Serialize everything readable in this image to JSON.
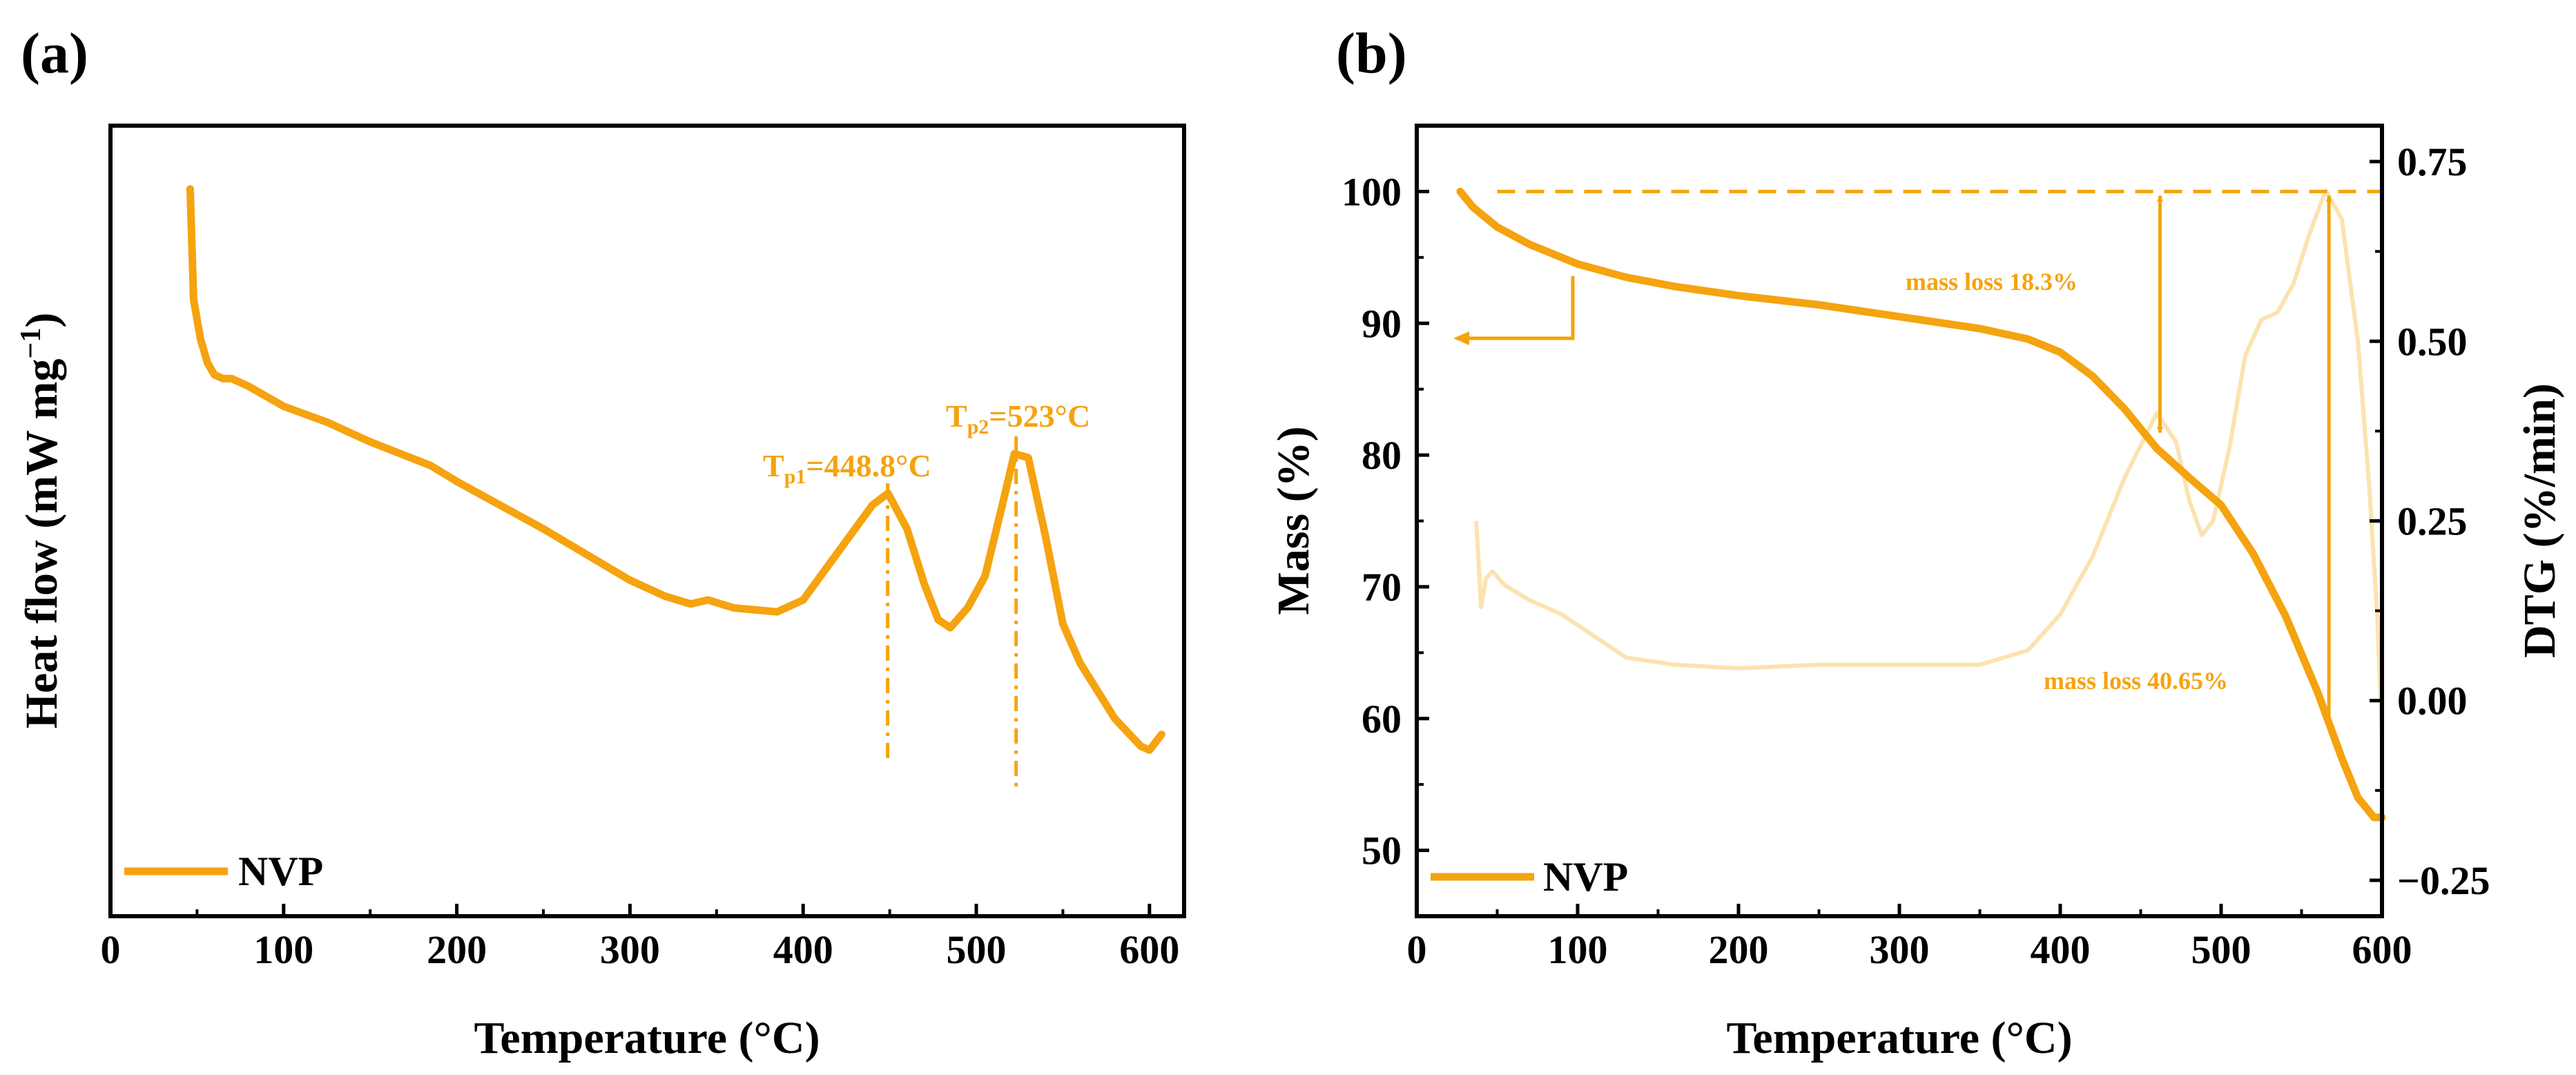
{
  "colors": {
    "main": "#F5A30F",
    "dtg": "#FBE3B0",
    "axis": "#000000"
  },
  "chart_data": [
    {
      "panel": "(a)",
      "type": "line",
      "title": "",
      "xlabel": "Temperature (°C)",
      "ylabel": "Heat flow (mW mg",
      "ylabel_sup": "−1",
      "ylabel_end": ")",
      "xlim": [
        0,
        620
      ],
      "ylim": [
        0,
        1
      ],
      "xticks": [
        "0",
        "100",
        "200",
        "300",
        "400",
        "500",
        "600"
      ],
      "legend": "NVP",
      "legend_position": "bottom-left",
      "series": [
        {
          "name": "NVP",
          "x": [
            46,
            48,
            52,
            56,
            60,
            65,
            70,
            80,
            100,
            125,
            150,
            185,
            200,
            250,
            300,
            320,
            335,
            345,
            360,
            385,
            400,
            420,
            440,
            449,
            460,
            470,
            478,
            485,
            495,
            505,
            515,
            522,
            530,
            540,
            550,
            560,
            580,
            595,
            600,
            607
          ],
          "y": [
            0.92,
            0.78,
            0.73,
            0.7,
            0.685,
            0.68,
            0.68,
            0.67,
            0.645,
            0.625,
            0.6,
            0.57,
            0.55,
            0.49,
            0.425,
            0.405,
            0.395,
            0.4,
            0.39,
            0.385,
            0.4,
            0.46,
            0.52,
            0.535,
            0.49,
            0.42,
            0.375,
            0.365,
            0.39,
            0.43,
            0.52,
            0.585,
            0.58,
            0.48,
            0.37,
            0.32,
            0.25,
            0.215,
            0.21,
            0.23
          ]
        }
      ],
      "annotations": [
        {
          "text_main": "T",
          "text_sub": "p1",
          "text_rest": "=448.8°C",
          "x": 448.8
        },
        {
          "text_main": "T",
          "text_sub": "p2",
          "text_rest": "=523°C",
          "x": 523
        }
      ]
    },
    {
      "panel": "(b)",
      "type": "line",
      "title": "",
      "xlabel": "Temperature (°C)",
      "ylabel": "Mass (%)",
      "ylabel_right": "DTG (%/min)",
      "xlim": [
        0,
        600
      ],
      "ylim": [
        45,
        105
      ],
      "ylim_right": [
        -0.3,
        0.8
      ],
      "xticks": [
        "0",
        "100",
        "200",
        "300",
        "400",
        "500",
        "600"
      ],
      "yticks": [
        "50",
        "60",
        "70",
        "80",
        "90",
        "100"
      ],
      "yticks_right": [
        "−0.25",
        "0.00",
        "0.25",
        "0.50",
        "0.75"
      ],
      "legend": "NVP",
      "legend_position": "bottom-left",
      "series": [
        {
          "name": "NVP mass",
          "axis": "left",
          "x": [
            27,
            35,
            50,
            70,
            100,
            130,
            160,
            200,
            250,
            300,
            350,
            380,
            400,
            420,
            440,
            460,
            480,
            500,
            520,
            540,
            560,
            575,
            585,
            595,
            600
          ],
          "y": [
            100,
            98.8,
            97.3,
            96.0,
            94.5,
            93.5,
            92.8,
            92.1,
            91.4,
            90.5,
            89.6,
            88.8,
            87.8,
            86.0,
            83.5,
            80.5,
            78.3,
            76.2,
            72.5,
            67.8,
            62.0,
            57.0,
            54.0,
            52.5,
            52.5
          ]
        },
        {
          "name": "NVP DTG",
          "axis": "right",
          "x": [
            37,
            40,
            43,
            47,
            55,
            70,
            90,
            110,
            130,
            160,
            200,
            250,
            300,
            350,
            380,
            400,
            420,
            440,
            460,
            472,
            480,
            488,
            495,
            505,
            515,
            525,
            535,
            545,
            555,
            565,
            575,
            585,
            592,
            597,
            600
          ],
          "y": [
            0.25,
            0.13,
            0.17,
            0.18,
            0.16,
            0.14,
            0.12,
            0.09,
            0.06,
            0.05,
            0.045,
            0.05,
            0.05,
            0.05,
            0.07,
            0.12,
            0.2,
            0.31,
            0.4,
            0.36,
            0.28,
            0.23,
            0.25,
            0.35,
            0.48,
            0.53,
            0.54,
            0.58,
            0.65,
            0.71,
            0.67,
            0.5,
            0.3,
            0.12,
            -0.05
          ]
        }
      ],
      "annotations": [
        {
          "text": "mass loss 18.3%",
          "from_x": 462,
          "from_mass": 100,
          "to_mass": 81.7
        },
        {
          "text": "mass loss 40.65%",
          "from_x": 567,
          "from_mass": 100,
          "to_mass": 59.35
        }
      ]
    }
  ]
}
